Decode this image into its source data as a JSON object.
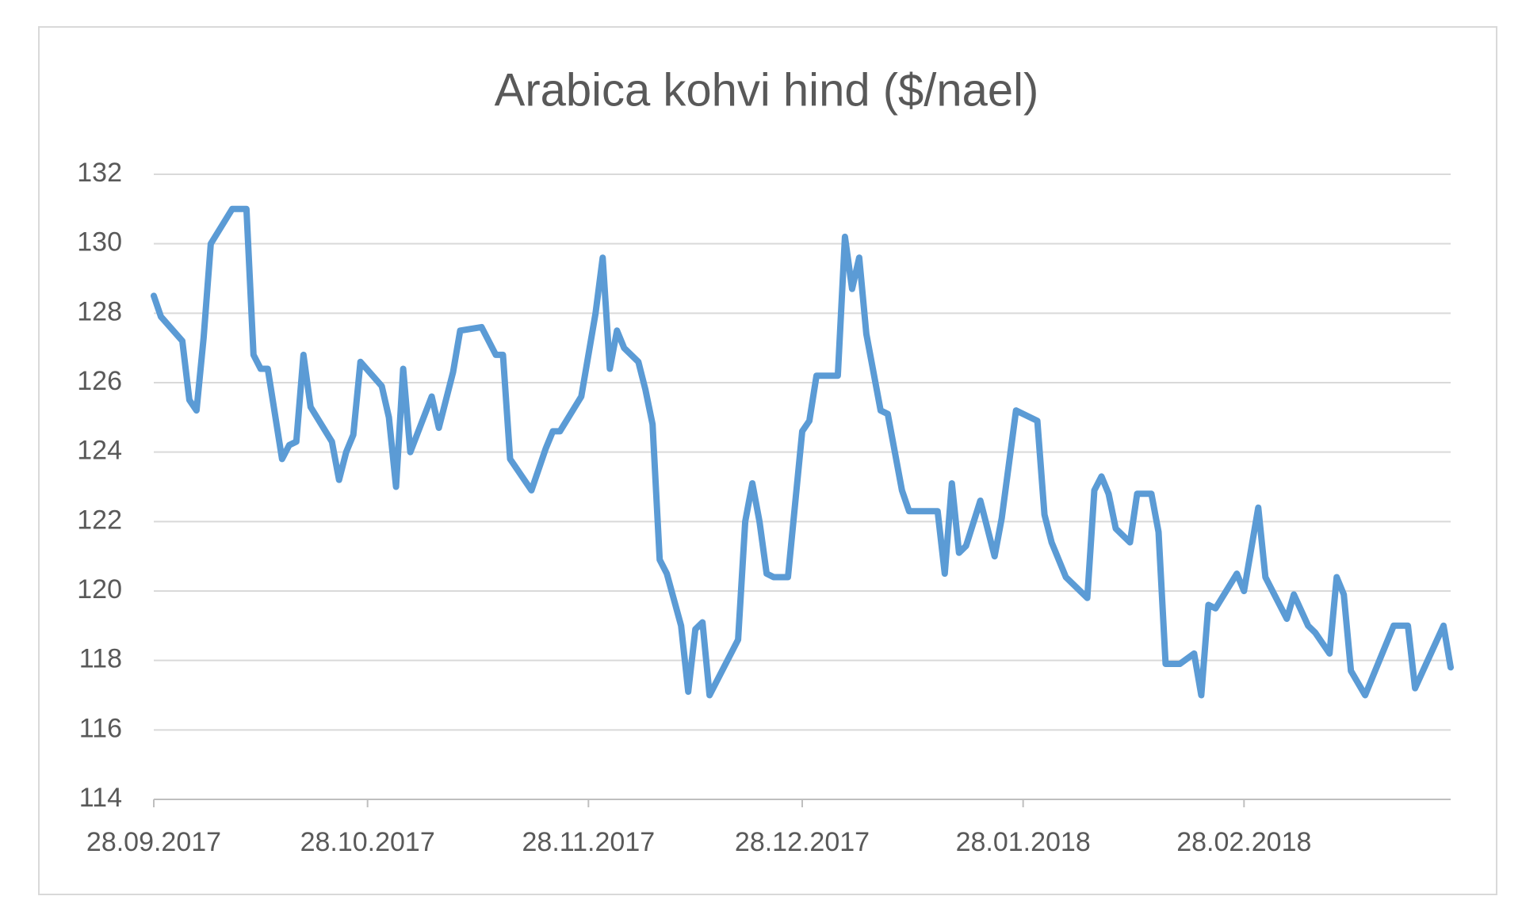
{
  "chart_data": {
    "type": "line",
    "title": "Arabica kohvi hind ($/nael)",
    "x": [
      "28.09.2017",
      "29.09.2017",
      "02.10.2017",
      "03.10.2017",
      "04.10.2017",
      "05.10.2017",
      "06.10.2017",
      "09.10.2017",
      "11.10.2017",
      "12.10.2017",
      "13.10.2017",
      "14.10.2017",
      "16.10.2017",
      "17.10.2017",
      "18.10.2017",
      "19.10.2017",
      "20.10.2017",
      "23.10.2017",
      "24.10.2017",
      "25.10.2017",
      "26.10.2017",
      "27.10.2017",
      "30.10.2017",
      "31.10.2017",
      "01.11.2017",
      "02.11.2017",
      "03.11.2017",
      "06.11.2017",
      "07.11.2017",
      "09.11.2017",
      "10.11.2017",
      "13.11.2017",
      "15.11.2017",
      "16.11.2017",
      "17.11.2017",
      "20.11.2017",
      "22.11.2017",
      "23.11.2017",
      "24.11.2017",
      "27.11.2017",
      "29.11.2017",
      "30.11.2017",
      "01.12.2017",
      "02.12.2017",
      "03.12.2017",
      "05.12.2017",
      "06.12.2017",
      "07.12.2017",
      "08.12.2017",
      "09.12.2017",
      "11.12.2017",
      "12.12.2017",
      "13.12.2017",
      "14.12.2017",
      "15.12.2017",
      "19.12.2017",
      "20.12.2017",
      "21.12.2017",
      "22.12.2017",
      "23.12.2017",
      "24.12.2017",
      "26.12.2017",
      "27.12.2017",
      "28.12.2017",
      "29.12.2017",
      "30.12.2017",
      "02.01.2018",
      "03.01.2018",
      "04.01.2018",
      "05.01.2018",
      "06.01.2018",
      "08.01.2018",
      "09.01.2018",
      "11.01.2018",
      "12.01.2018",
      "16.01.2018",
      "17.01.2018",
      "18.01.2018",
      "19.01.2018",
      "20.01.2018",
      "22.01.2018",
      "24.01.2018",
      "25.01.2018",
      "27.01.2018",
      "30.01.2018",
      "31.01.2018",
      "01.02.2018",
      "03.02.2018",
      "06.02.2018",
      "07.02.2018",
      "08.02.2018",
      "09.02.2018",
      "10.02.2018",
      "12.02.2018",
      "13.02.2018",
      "15.02.2018",
      "16.02.2018",
      "17.02.2018",
      "19.02.2018",
      "21.02.2018",
      "22.02.2018",
      "23.02.2018",
      "24.02.2018",
      "27.02.2018",
      "28.02.2018",
      "02.03.2018",
      "03.03.2018",
      "06.03.2018",
      "07.03.2018",
      "09.03.2018",
      "10.03.2018",
      "12.03.2018",
      "13.03.2018",
      "14.03.2018",
      "15.03.2018",
      "17.03.2018",
      "21.03.2018",
      "23.03.2018",
      "24.03.2018",
      "26.03.2018",
      "28.03.2018",
      "29.03.2018"
    ],
    "series": [
      {
        "name": "Arabica",
        "color": "#5b9bd5",
        "values": [
          128.5,
          127.9,
          127.2,
          125.5,
          125.2,
          127.3,
          130.0,
          131.0,
          131.0,
          126.8,
          126.4,
          126.4,
          123.8,
          124.2,
          124.3,
          126.8,
          125.3,
          124.3,
          123.2,
          124.0,
          124.5,
          126.6,
          125.9,
          125.0,
          123.0,
          126.4,
          124.0,
          125.6,
          124.7,
          126.3,
          127.5,
          127.6,
          126.8,
          126.8,
          123.8,
          122.9,
          124.1,
          124.6,
          124.6,
          125.6,
          128.0,
          129.6,
          126.4,
          127.5,
          127.0,
          126.6,
          125.8,
          124.8,
          120.9,
          120.5,
          119.0,
          117.1,
          118.9,
          119.1,
          117.0,
          118.6,
          122.0,
          123.1,
          122.0,
          120.5,
          120.4,
          120.4,
          122.5,
          124.6,
          124.9,
          126.2,
          126.2,
          130.2,
          128.7,
          129.6,
          127.4,
          125.2,
          125.1,
          122.9,
          122.3,
          122.3,
          120.5,
          123.1,
          121.1,
          121.3,
          122.6,
          121.0,
          122.1,
          125.2,
          124.9,
          122.2,
          121.4,
          120.4,
          119.8,
          122.9,
          123.3,
          122.8,
          121.8,
          121.4,
          122.8,
          122.8,
          121.7,
          117.9,
          117.9,
          118.2,
          117.0,
          119.6,
          119.5,
          120.5,
          120.0,
          122.4,
          120.4,
          119.2,
          119.9,
          119.0,
          118.8,
          118.2,
          120.4,
          119.9,
          117.7,
          117.0,
          119.0,
          119.0,
          117.2,
          118.1,
          119.0,
          117.8
        ]
      }
    ],
    "xlim": [
      "28.09.2017",
      "29.03.2018"
    ],
    "xticks": [
      "28.09.2017",
      "28.10.2017",
      "28.11.2017",
      "28.12.2017",
      "28.01.2018",
      "28.02.2018"
    ],
    "ylim": [
      114,
      132
    ],
    "yticks": [
      114,
      116,
      118,
      120,
      122,
      124,
      126,
      128,
      130,
      132
    ],
    "grid": true
  }
}
